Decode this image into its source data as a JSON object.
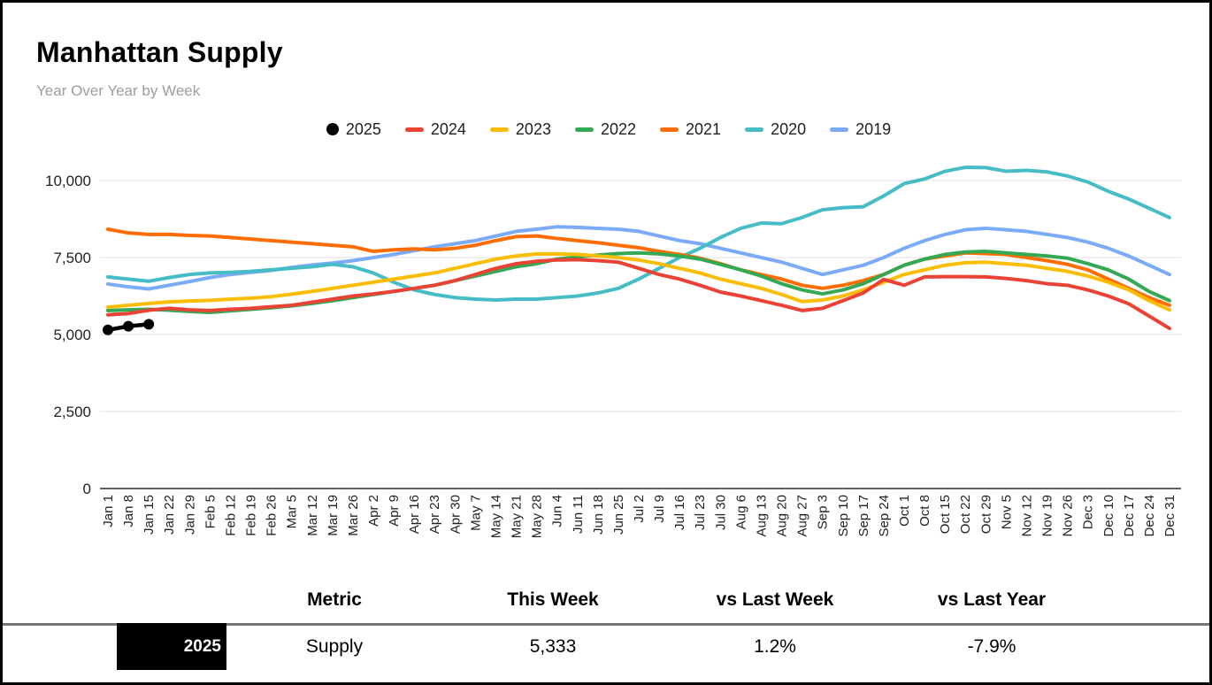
{
  "page": {
    "title": "Manhattan Supply",
    "subtitle": "Year Over Year by Week"
  },
  "chart_data": {
    "type": "line",
    "title": "Manhattan Supply",
    "subtitle": "Year Over Year by Week",
    "grid": true,
    "legend_position": "top",
    "ylim": [
      0,
      10500
    ],
    "x_labels": [
      "Jan 1",
      "Jan 8",
      "Jan 15",
      "Jan 22",
      "Jan 29",
      "Feb 5",
      "Feb 12",
      "Feb 19",
      "Feb 26",
      "Mar 5",
      "Mar 12",
      "Mar 19",
      "Mar 26",
      "Apr 2",
      "Apr 9",
      "Apr 16",
      "Apr 23",
      "Apr 30",
      "May 7",
      "May 14",
      "May 21",
      "May 28",
      "Jun 4",
      "Jun 11",
      "Jun 18",
      "Jun 25",
      "Jul 2",
      "Jul 9",
      "Jul 16",
      "Jul 23",
      "Jul 30",
      "Aug 6",
      "Aug 13",
      "Aug 20",
      "Aug 27",
      "Sep 3",
      "Sep 10",
      "Sep 17",
      "Sep 24",
      "Oct 1",
      "Oct 8",
      "Oct 15",
      "Oct 22",
      "Oct 29",
      "Nov 5",
      "Nov 12",
      "Nov 19",
      "Nov 26",
      "Dec 3",
      "Dec 10",
      "Dec 17",
      "Dec 24",
      "Dec 31"
    ],
    "y_ticks": [
      {
        "value": 0,
        "label": "0"
      },
      {
        "value": 2500,
        "label": "2,500"
      },
      {
        "value": 5000,
        "label": "5,000"
      },
      {
        "value": 7500,
        "label": "7,500"
      },
      {
        "value": 10000,
        "label": "10,000"
      }
    ],
    "series": [
      {
        "name": "2025",
        "color": "#000000",
        "marker": "circle",
        "values": [
          5150,
          5270,
          5333
        ]
      },
      {
        "name": "2024",
        "color": "#EA4335",
        "values": [
          5640,
          5680,
          5790,
          5850,
          5800,
          5780,
          5820,
          5850,
          5900,
          5950,
          6050,
          6150,
          6250,
          6320,
          6400,
          6500,
          6600,
          6750,
          6950,
          7150,
          7300,
          7380,
          7420,
          7430,
          7400,
          7350,
          7150,
          6950,
          6800,
          6600,
          6380,
          6250,
          6100,
          5950,
          5780,
          5850,
          6100,
          6350,
          6790,
          6600,
          6870,
          6880,
          6880,
          6870,
          6820,
          6750,
          6650,
          6600,
          6450,
          6250,
          6000,
          5600,
          5200
        ]
      },
      {
        "name": "2023",
        "color": "#FBBC04",
        "values": [
          5890,
          5950,
          6010,
          6060,
          6090,
          6110,
          6150,
          6180,
          6230,
          6310,
          6400,
          6500,
          6600,
          6700,
          6800,
          6900,
          7000,
          7150,
          7300,
          7450,
          7550,
          7620,
          7620,
          7600,
          7550,
          7500,
          7420,
          7300,
          7150,
          7000,
          6800,
          6650,
          6500,
          6300,
          6070,
          6120,
          6250,
          6450,
          6700,
          6950,
          7100,
          7250,
          7330,
          7350,
          7300,
          7250,
          7150,
          7050,
          6900,
          6700,
          6450,
          6100,
          5800
        ]
      },
      {
        "name": "2022",
        "color": "#34A853",
        "values": [
          5780,
          5800,
          5820,
          5790,
          5750,
          5720,
          5770,
          5820,
          5870,
          5930,
          6010,
          6100,
          6200,
          6300,
          6400,
          6500,
          6600,
          6750,
          6900,
          7050,
          7200,
          7300,
          7450,
          7520,
          7580,
          7630,
          7650,
          7620,
          7550,
          7450,
          7280,
          7100,
          6900,
          6650,
          6450,
          6320,
          6450,
          6650,
          6950,
          7250,
          7450,
          7600,
          7680,
          7700,
          7650,
          7600,
          7550,
          7480,
          7300,
          7100,
          6800,
          6400,
          6100
        ]
      },
      {
        "name": "2021",
        "color": "#FF6D01",
        "values": [
          8420,
          8300,
          8250,
          8250,
          8220,
          8200,
          8150,
          8100,
          8050,
          8000,
          7950,
          7900,
          7850,
          7700,
          7750,
          7780,
          7750,
          7800,
          7900,
          8050,
          8180,
          8200,
          8120,
          8050,
          7980,
          7900,
          7820,
          7700,
          7600,
          7480,
          7300,
          7100,
          6950,
          6800,
          6600,
          6500,
          6600,
          6750,
          6950,
          7250,
          7450,
          7550,
          7650,
          7630,
          7600,
          7500,
          7400,
          7280,
          7100,
          6800,
          6500,
          6200,
          5950
        ]
      },
      {
        "name": "2020",
        "color": "#46BDC6",
        "values": [
          6870,
          6800,
          6730,
          6850,
          6950,
          7000,
          7020,
          7050,
          7100,
          7150,
          7200,
          7280,
          7200,
          7000,
          6700,
          6450,
          6300,
          6200,
          6150,
          6120,
          6150,
          6150,
          6200,
          6250,
          6350,
          6500,
          6800,
          7150,
          7500,
          7800,
          8150,
          8450,
          8620,
          8600,
          8800,
          9050,
          9120,
          9150,
          9500,
          9900,
          10050,
          10300,
          10430,
          10420,
          10300,
          10330,
          10280,
          10150,
          9950,
          9650,
          9400,
          9100,
          8800
        ]
      },
      {
        "name": "2019",
        "color": "#7BAAF7",
        "values": [
          6640,
          6550,
          6480,
          6600,
          6720,
          6850,
          6950,
          7020,
          7080,
          7180,
          7260,
          7320,
          7400,
          7500,
          7600,
          7720,
          7850,
          7950,
          8050,
          8200,
          8350,
          8420,
          8500,
          8480,
          8450,
          8420,
          8350,
          8200,
          8050,
          7950,
          7800,
          7650,
          7500,
          7350,
          7150,
          6950,
          7100,
          7250,
          7500,
          7800,
          8050,
          8250,
          8400,
          8450,
          8400,
          8350,
          8250,
          8150,
          8000,
          7800,
          7550,
          7250,
          6950
        ]
      }
    ]
  },
  "table": {
    "columns": [
      "Metric",
      "This Week",
      "vs Last Week",
      "vs Last Year"
    ],
    "rows": [
      {
        "year": "2025",
        "metric": "Supply",
        "this_week": "5,333",
        "vs_last_week": "1.2%",
        "vs_last_year": "-7.9%"
      }
    ]
  }
}
